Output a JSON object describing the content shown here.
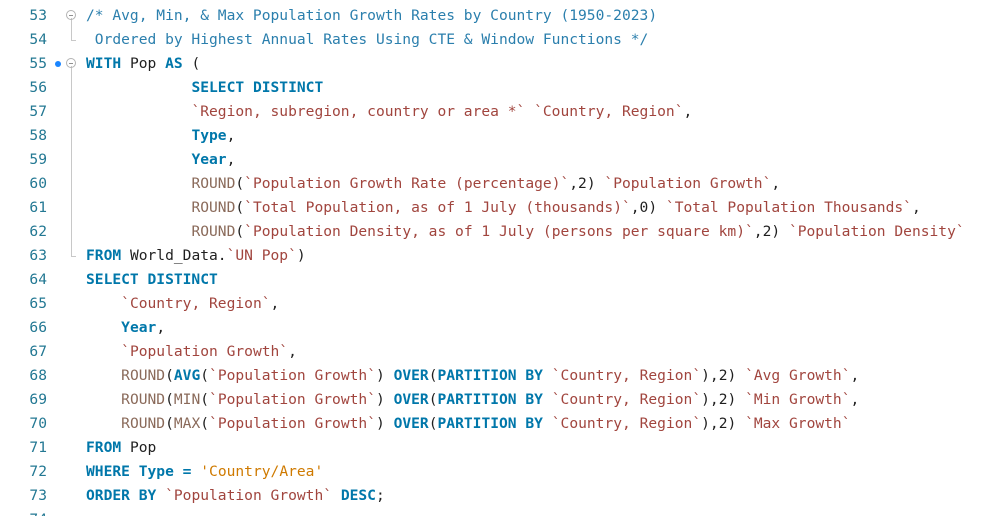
{
  "editor": {
    "lines": [
      {
        "n": "53",
        "fold": true,
        "breakpoint": false,
        "indent": 0,
        "tokens": [
          {
            "t": "/* Avg, Min, & Max Population Growth Rates by Country (1950-2023)",
            "c": "cm"
          }
        ]
      },
      {
        "n": "54",
        "fold": false,
        "breakpoint": false,
        "indent": 0,
        "tokens": [
          {
            "t": " Ordered by Highest Annual Rates Using CTE & Window Functions */",
            "c": "cm"
          }
        ]
      },
      {
        "n": "55",
        "fold": true,
        "breakpoint": true,
        "indent": 0,
        "tokens": [
          {
            "t": "WITH",
            "c": "kw"
          },
          {
            "t": " Pop ",
            "c": "id"
          },
          {
            "t": "AS",
            "c": "kw"
          },
          {
            "t": " (",
            "c": "id"
          }
        ]
      },
      {
        "n": "56",
        "fold": false,
        "breakpoint": false,
        "indent": 12,
        "tokens": [
          {
            "t": "SELECT DISTINCT",
            "c": "kw"
          }
        ]
      },
      {
        "n": "57",
        "fold": false,
        "breakpoint": false,
        "indent": 12,
        "tokens": [
          {
            "t": "`Region, subregion, country or area *`",
            "c": "bt"
          },
          {
            "t": " ",
            "c": "id"
          },
          {
            "t": "`Country, Region`",
            "c": "bt"
          },
          {
            "t": ",",
            "c": "id"
          }
        ]
      },
      {
        "n": "58",
        "fold": false,
        "breakpoint": false,
        "indent": 12,
        "tokens": [
          {
            "t": "Type",
            "c": "kw"
          },
          {
            "t": ",",
            "c": "id"
          }
        ]
      },
      {
        "n": "59",
        "fold": false,
        "breakpoint": false,
        "indent": 12,
        "tokens": [
          {
            "t": "Year",
            "c": "kw"
          },
          {
            "t": ",",
            "c": "id"
          }
        ]
      },
      {
        "n": "60",
        "fold": false,
        "breakpoint": false,
        "indent": 12,
        "tokens": [
          {
            "t": "ROUND",
            "c": "fn"
          },
          {
            "t": "(",
            "c": "id"
          },
          {
            "t": "`Population Growth Rate (percentage)`",
            "c": "bt"
          },
          {
            "t": ",2) ",
            "c": "id"
          },
          {
            "t": "`Population Growth`",
            "c": "bt"
          },
          {
            "t": ",",
            "c": "id"
          }
        ]
      },
      {
        "n": "61",
        "fold": false,
        "breakpoint": false,
        "indent": 12,
        "tokens": [
          {
            "t": "ROUND",
            "c": "fn"
          },
          {
            "t": "(",
            "c": "id"
          },
          {
            "t": "`Total Population, as of 1 July (thousands)`",
            "c": "bt"
          },
          {
            "t": ",0) ",
            "c": "id"
          },
          {
            "t": "`Total Population Thousands`",
            "c": "bt"
          },
          {
            "t": ",",
            "c": "id"
          }
        ]
      },
      {
        "n": "62",
        "fold": false,
        "breakpoint": false,
        "indent": 12,
        "tokens": [
          {
            "t": "ROUND",
            "c": "fn"
          },
          {
            "t": "(",
            "c": "id"
          },
          {
            "t": "`Population Density, as of 1 July (persons per square km)`",
            "c": "bt"
          },
          {
            "t": ",2) ",
            "c": "id"
          },
          {
            "t": "`Population Density`",
            "c": "bt"
          }
        ]
      },
      {
        "n": "63",
        "fold": false,
        "breakpoint": false,
        "indent": 0,
        "tokens": [
          {
            "t": "FROM",
            "c": "kw"
          },
          {
            "t": " World_Data.",
            "c": "id"
          },
          {
            "t": "`UN Pop`",
            "c": "bt"
          },
          {
            "t": ")",
            "c": "id"
          }
        ]
      },
      {
        "n": "64",
        "fold": false,
        "breakpoint": false,
        "indent": 0,
        "tokens": [
          {
            "t": "SELECT DISTINCT",
            "c": "kw"
          }
        ]
      },
      {
        "n": "65",
        "fold": false,
        "breakpoint": false,
        "indent": 4,
        "tokens": [
          {
            "t": "`Country, Region`",
            "c": "bt"
          },
          {
            "t": ",",
            "c": "id"
          }
        ]
      },
      {
        "n": "66",
        "fold": false,
        "breakpoint": false,
        "indent": 4,
        "tokens": [
          {
            "t": "Year",
            "c": "kw"
          },
          {
            "t": ",",
            "c": "id"
          }
        ]
      },
      {
        "n": "67",
        "fold": false,
        "breakpoint": false,
        "indent": 4,
        "tokens": [
          {
            "t": "`Population Growth`",
            "c": "bt"
          },
          {
            "t": ",",
            "c": "id"
          }
        ]
      },
      {
        "n": "68",
        "fold": false,
        "breakpoint": false,
        "indent": 4,
        "tokens": [
          {
            "t": "ROUND",
            "c": "fn"
          },
          {
            "t": "(",
            "c": "id"
          },
          {
            "t": "AVG",
            "c": "kw"
          },
          {
            "t": "(",
            "c": "id"
          },
          {
            "t": "`Population Growth`",
            "c": "bt"
          },
          {
            "t": ") ",
            "c": "id"
          },
          {
            "t": "OVER",
            "c": "kw"
          },
          {
            "t": "(",
            "c": "id"
          },
          {
            "t": "PARTITION BY",
            "c": "kw"
          },
          {
            "t": " ",
            "c": "id"
          },
          {
            "t": "`Country, Region`",
            "c": "bt"
          },
          {
            "t": "),2) ",
            "c": "id"
          },
          {
            "t": "`Avg Growth`",
            "c": "bt"
          },
          {
            "t": ",",
            "c": "id"
          }
        ]
      },
      {
        "n": "69",
        "fold": false,
        "breakpoint": false,
        "indent": 4,
        "tokens": [
          {
            "t": "ROUND",
            "c": "fn"
          },
          {
            "t": "(",
            "c": "id"
          },
          {
            "t": "MIN",
            "c": "fn"
          },
          {
            "t": "(",
            "c": "id"
          },
          {
            "t": "`Population Growth`",
            "c": "bt"
          },
          {
            "t": ") ",
            "c": "id"
          },
          {
            "t": "OVER",
            "c": "kw"
          },
          {
            "t": "(",
            "c": "id"
          },
          {
            "t": "PARTITION BY",
            "c": "kw"
          },
          {
            "t": " ",
            "c": "id"
          },
          {
            "t": "`Country, Region`",
            "c": "bt"
          },
          {
            "t": "),2) ",
            "c": "id"
          },
          {
            "t": "`Min Growth`",
            "c": "bt"
          },
          {
            "t": ",",
            "c": "id"
          }
        ]
      },
      {
        "n": "70",
        "fold": false,
        "breakpoint": false,
        "indent": 4,
        "tokens": [
          {
            "t": "ROUND",
            "c": "fn"
          },
          {
            "t": "(",
            "c": "id"
          },
          {
            "t": "MAX",
            "c": "fn"
          },
          {
            "t": "(",
            "c": "id"
          },
          {
            "t": "`Population Growth`",
            "c": "bt"
          },
          {
            "t": ") ",
            "c": "id"
          },
          {
            "t": "OVER",
            "c": "kw"
          },
          {
            "t": "(",
            "c": "id"
          },
          {
            "t": "PARTITION BY",
            "c": "kw"
          },
          {
            "t": " ",
            "c": "id"
          },
          {
            "t": "`Country, Region`",
            "c": "bt"
          },
          {
            "t": "),2) ",
            "c": "id"
          },
          {
            "t": "`Max Growth`",
            "c": "bt"
          }
        ]
      },
      {
        "n": "71",
        "fold": false,
        "breakpoint": false,
        "indent": 0,
        "tokens": [
          {
            "t": "FROM",
            "c": "kw"
          },
          {
            "t": " Pop",
            "c": "id"
          }
        ]
      },
      {
        "n": "72",
        "fold": false,
        "breakpoint": false,
        "indent": 0,
        "tokens": [
          {
            "t": "WHERE",
            "c": "kw"
          },
          {
            "t": " ",
            "c": "id"
          },
          {
            "t": "Type",
            "c": "kw"
          },
          {
            "t": " = ",
            "c": "kw"
          },
          {
            "t": "'Country/Area'",
            "c": "str"
          }
        ]
      },
      {
        "n": "73",
        "fold": false,
        "breakpoint": false,
        "indent": 0,
        "tokens": [
          {
            "t": "ORDER BY",
            "c": "kw"
          },
          {
            "t": " ",
            "c": "id"
          },
          {
            "t": "`Population Growth`",
            "c": "bt"
          },
          {
            "t": " ",
            "c": "id"
          },
          {
            "t": "DESC",
            "c": "kw"
          },
          {
            "t": ";",
            "c": "id"
          }
        ]
      },
      {
        "n": "74",
        "fold": false,
        "breakpoint": false,
        "indent": 0,
        "tokens": []
      }
    ]
  }
}
